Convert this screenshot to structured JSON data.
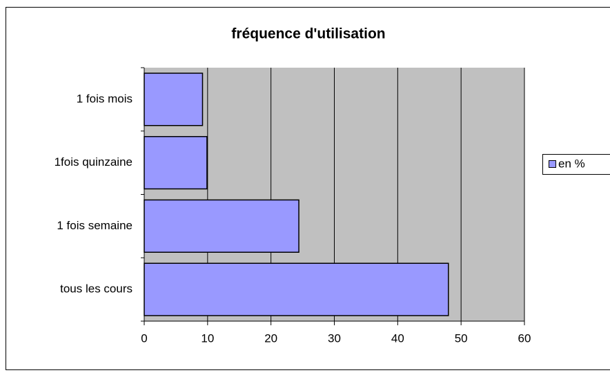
{
  "chart_data": {
    "type": "hbar",
    "title": "fréquence d'utilisation",
    "categories": [
      "1 fois mois",
      "1fois quinzaine",
      "1 fois semaine",
      "tous les cours"
    ],
    "series": [
      {
        "name": "en %",
        "color": "#9999ff",
        "values": [
          9.2,
          9.9,
          24.4,
          48
        ]
      }
    ],
    "xlim": [
      0,
      60
    ],
    "xticks": [
      0,
      10,
      20,
      30,
      40,
      50,
      60
    ],
    "grid": true,
    "legend": "right"
  }
}
